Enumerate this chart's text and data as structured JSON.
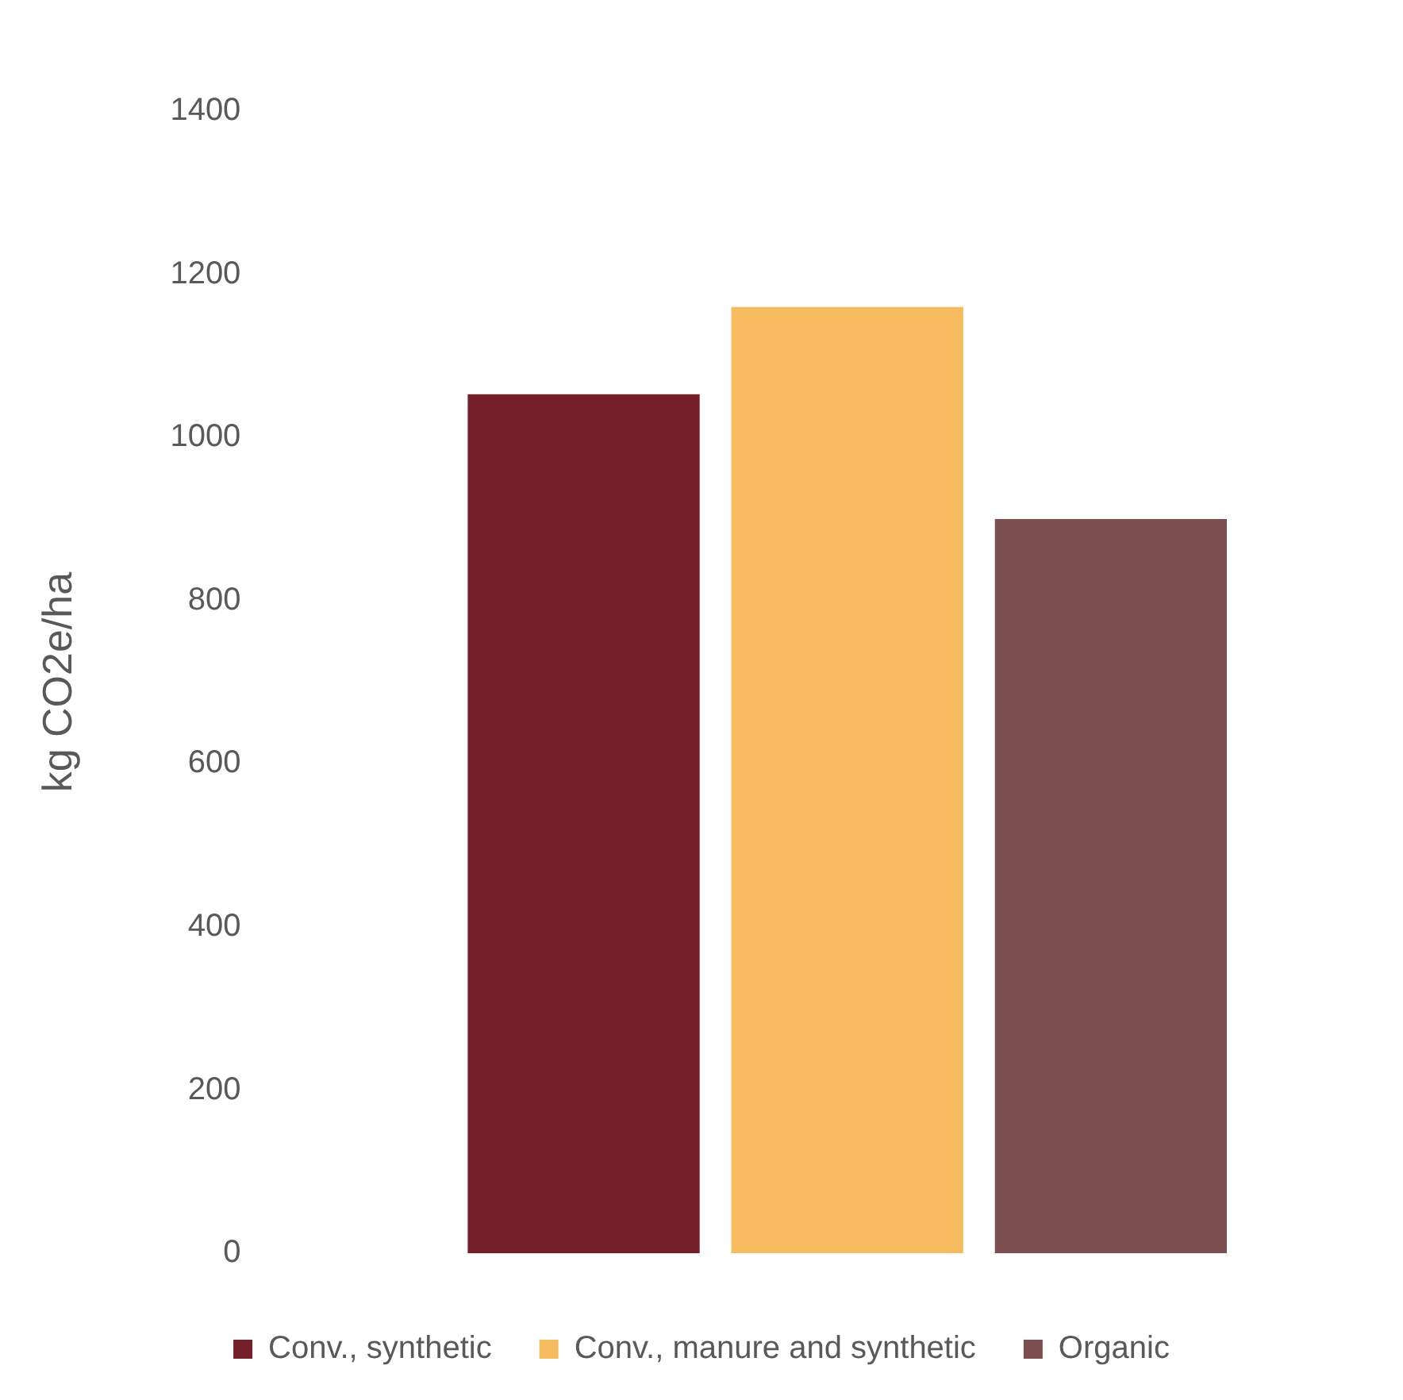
{
  "chart_data": {
    "type": "bar",
    "ylabel": "kg CO2e/ha",
    "categories": [
      null
    ],
    "series": [
      {
        "name": "Conv., synthetic",
        "color": "#731e29",
        "values": [
          1053
        ]
      },
      {
        "name": "Conv., manure and synthetic",
        "color": "#f6ba5f",
        "values": [
          1160
        ]
      },
      {
        "name": "Organic",
        "color": "#7b4f50",
        "values": [
          900
        ]
      }
    ],
    "ylim": [
      0,
      1400
    ],
    "yticks": [
      0,
      200,
      400,
      600,
      800,
      1000,
      1200,
      1400
    ],
    "legend": "bottom"
  }
}
